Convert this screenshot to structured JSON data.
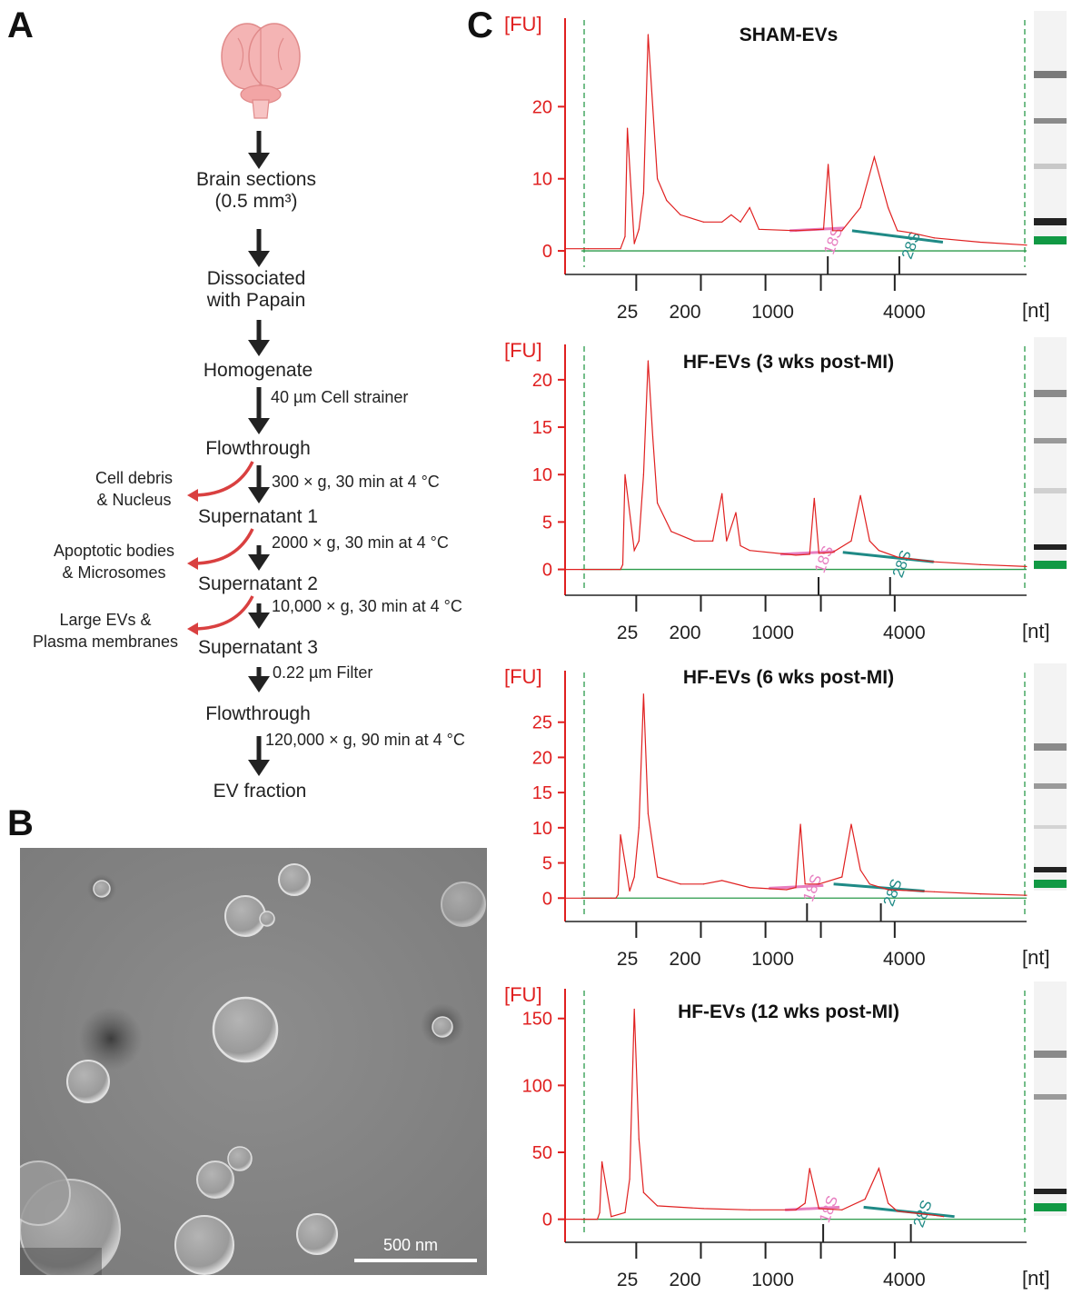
{
  "panels": {
    "a": "A",
    "b": "B",
    "c": "C"
  },
  "flow": {
    "steps": [
      {
        "text": "Brain sections",
        "sub": "(0.5 mm³)"
      },
      {
        "text": "Dissociated",
        "sub": "with Papain"
      },
      {
        "text": "Homogenate"
      },
      {
        "text": "Flowthrough"
      },
      {
        "text": "Supernatant 1"
      },
      {
        "text": "Supernatant 2"
      },
      {
        "text": "Supernatant 3"
      },
      {
        "text": "Flowthrough"
      },
      {
        "text": "EV fraction"
      }
    ],
    "conditions": [
      "40 µm Cell strainer",
      "300 × g, 30 min at 4 °C",
      "2000 × g, 30 min at 4 °C",
      "10,000 × g, 30 min at 4 °C",
      "0.22 µm Filter",
      "120,000 × g, 90 min at 4 °C"
    ],
    "removed": [
      {
        "l1": "Cell debris",
        "l2": "& Nucleus"
      },
      {
        "l1": "Apoptotic bodies",
        "l2": "& Microsomes"
      },
      {
        "l1": "Large EVs &",
        "l2": "Plasma membranes"
      }
    ],
    "colors": {
      "arrow": "#222222",
      "removed_arrow": "#d94040",
      "brain": "#f2a5a5"
    }
  },
  "em": {
    "scale_bar": "500 nm"
  },
  "chart_data": [
    {
      "type": "line",
      "title": "SHAM-EVs",
      "ylabel": "[FU]",
      "xlabel": "[nt]",
      "yticks": [
        0,
        10,
        20
      ],
      "ylim": [
        -1,
        30
      ],
      "xticks": [
        "25",
        "200",
        "1000",
        "4000"
      ],
      "markers": [
        "18S",
        "28S"
      ],
      "series": [
        {
          "x": [
            0,
            0.05,
            0.12,
            0.13,
            0.135,
            0.15,
            0.16,
            0.17,
            0.18,
            0.19,
            0.2,
            0.22,
            0.25,
            0.3,
            0.34,
            0.36,
            0.38,
            0.4,
            0.42,
            0.5,
            0.56,
            0.57,
            0.58,
            0.6,
            0.64,
            0.67,
            0.7,
            0.72,
            0.75,
            0.8,
            0.9,
            1
          ],
          "y": [
            0.3,
            0.3,
            0.3,
            2,
            17,
            1,
            3,
            8,
            30,
            20,
            10,
            7,
            5,
            4,
            4,
            5,
            4,
            6,
            3,
            2.8,
            3,
            12,
            2.8,
            2.8,
            6,
            13,
            6,
            2.8,
            2.5,
            1.8,
            1.2,
            0.8
          ]
        }
      ]
    },
    {
      "type": "line",
      "title": "HF-EVs (3 wks post-MI)",
      "ylabel": "[FU]",
      "xlabel": "[nt]",
      "yticks": [
        0,
        5,
        10,
        15,
        20
      ],
      "ylim": [
        -1,
        22
      ],
      "xticks": [
        "25",
        "200",
        "1000",
        "4000"
      ],
      "markers": [
        "18S",
        "28S"
      ],
      "series": [
        {
          "x": [
            0,
            0.1,
            0.12,
            0.125,
            0.13,
            0.15,
            0.16,
            0.17,
            0.18,
            0.19,
            0.2,
            0.23,
            0.28,
            0.32,
            0.34,
            0.35,
            0.37,
            0.38,
            0.4,
            0.5,
            0.53,
            0.54,
            0.55,
            0.58,
            0.62,
            0.64,
            0.66,
            0.68,
            0.72,
            0.8,
            0.9,
            1
          ],
          "y": [
            0,
            0,
            0,
            0.5,
            10,
            2,
            3,
            10,
            22,
            14,
            7,
            4,
            3,
            3,
            8,
            3,
            6,
            2.5,
            2,
            1.5,
            1.6,
            7.5,
            1.7,
            1.8,
            3,
            7.8,
            3,
            2,
            1.3,
            0.8,
            0.5,
            0.3
          ]
        }
      ]
    },
    {
      "type": "line",
      "title": "HF-EVs (6 wks post-MI)",
      "ylabel": "[FU]",
      "xlabel": "[nt]",
      "yticks": [
        0,
        5,
        10,
        15,
        20,
        25
      ],
      "ylim": [
        -1,
        30
      ],
      "xticks": [
        "25",
        "200",
        "1000",
        "4000"
      ],
      "markers": [
        "18S",
        "28S"
      ],
      "series": [
        {
          "x": [
            0,
            0.1,
            0.11,
            0.115,
            0.12,
            0.14,
            0.15,
            0.16,
            0.17,
            0.18,
            0.2,
            0.25,
            0.3,
            0.34,
            0.4,
            0.48,
            0.5,
            0.51,
            0.52,
            0.55,
            0.6,
            0.62,
            0.64,
            0.66,
            0.7,
            0.8,
            0.9,
            1
          ],
          "y": [
            0,
            0,
            0,
            0.5,
            9,
            1,
            3,
            10,
            29,
            12,
            3,
            2,
            2,
            2.5,
            1.5,
            1.2,
            1.5,
            10.5,
            2,
            2,
            3,
            10.5,
            4,
            2,
            1.2,
            0.9,
            0.6,
            0.4
          ]
        }
      ]
    },
    {
      "type": "line",
      "title": "HF-EVs (12 wks post-MI)",
      "ylabel": "[FU]",
      "xlabel": "[nt]",
      "yticks": [
        0,
        50,
        100,
        150
      ],
      "ylim": [
        -5,
        160
      ],
      "xticks": [
        "25",
        "200",
        "1000",
        "4000"
      ],
      "markers": [
        "18S",
        "28S"
      ],
      "series": [
        {
          "x": [
            0,
            0.07,
            0.075,
            0.08,
            0.1,
            0.13,
            0.14,
            0.15,
            0.16,
            0.17,
            0.2,
            0.3,
            0.4,
            0.5,
            0.52,
            0.53,
            0.55,
            0.6,
            0.65,
            0.68,
            0.7,
            0.72,
            0.8,
            0.82
          ],
          "y": [
            0,
            0,
            5,
            43,
            2,
            5,
            30,
            157,
            60,
            20,
            10,
            8,
            7,
            7,
            12,
            38,
            8,
            7,
            15,
            38,
            12,
            6,
            3,
            2
          ]
        }
      ]
    }
  ]
}
